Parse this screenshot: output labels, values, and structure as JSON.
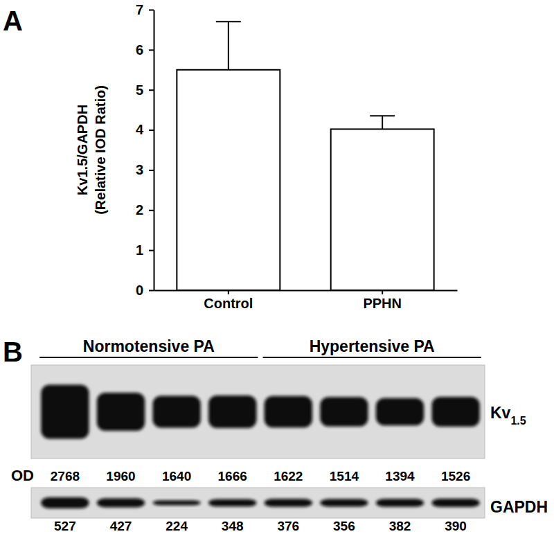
{
  "chart_data": {
    "type": "bar",
    "title": "A",
    "ylabel": [
      "Kv1.5/GAPDH",
      "(Relative IOD Ratio)"
    ],
    "categories": [
      "Control",
      "PPHN"
    ],
    "values": [
      5.5,
      4.02
    ],
    "errors": [
      1.2,
      0.33
    ],
    "color": "#ffffff",
    "ylim": [
      0,
      7
    ],
    "yticks": [
      0,
      1,
      2,
      3,
      4,
      5,
      6,
      7
    ]
  },
  "blot": {
    "label": "B",
    "od_label": "OD",
    "groups": [
      "Normotensive PA",
      "Hypertensive PA"
    ],
    "rows": [
      {
        "name": "Kv1.5",
        "od": [
          2768,
          1960,
          1640,
          1666,
          1622,
          1514,
          1394,
          1526
        ]
      },
      {
        "name": "GAPDH",
        "od": [
          527,
          427,
          224,
          348,
          376,
          356,
          382,
          390
        ]
      }
    ]
  }
}
